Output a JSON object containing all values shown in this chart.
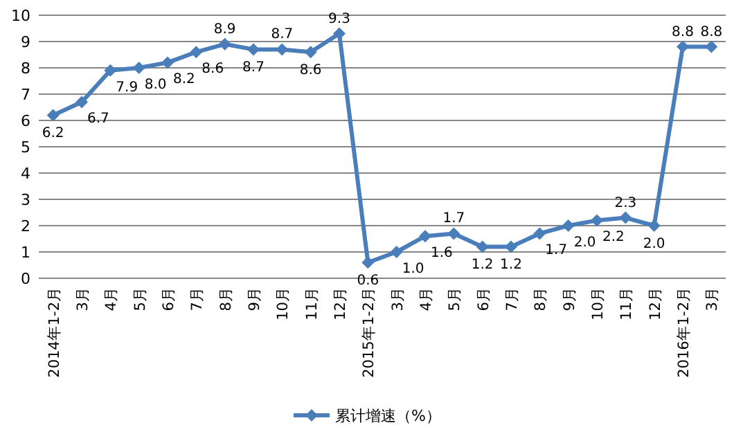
{
  "chart_data": {
    "type": "line",
    "categories": [
      "2014年1-2月",
      "3月",
      "4月",
      "5月",
      "6月",
      "7月",
      "8月",
      "9月",
      "10月",
      "11月",
      "12月",
      "2015年1-2月",
      "3月",
      "4月",
      "5月",
      "6月",
      "7月",
      "8月",
      "9月",
      "10月",
      "11月",
      "12月",
      "2016年1-2月",
      "3月"
    ],
    "series": [
      {
        "name": "累计增速（%）",
        "color": "#4a7ebb",
        "values": [
          6.2,
          6.7,
          7.9,
          8.0,
          8.2,
          8.6,
          8.9,
          8.7,
          8.7,
          8.6,
          9.3,
          0.6,
          1.0,
          1.6,
          1.7,
          1.2,
          1.2,
          1.7,
          2.0,
          2.2,
          2.3,
          2.0,
          8.8,
          8.8
        ],
        "value_labels": [
          "6.2",
          "6.7",
          "7.9",
          "8.0",
          "8.2",
          "8.6",
          "8.9",
          "8.7",
          "8.7",
          "8.6",
          "9.3",
          "0.6",
          "1.0",
          "1.6",
          "1.7",
          "1.2",
          "1.2",
          "1.7",
          "2.0",
          "2.2",
          "2.3",
          "2.0",
          "8.8",
          "8.8"
        ]
      }
    ],
    "ylim": [
      0,
      10
    ],
    "yticks": [
      0,
      1,
      2,
      3,
      4,
      5,
      6,
      7,
      8,
      9,
      10
    ],
    "grid": "y",
    "legend": "bottom",
    "marker": "diamond",
    "line_style": "solid"
  }
}
